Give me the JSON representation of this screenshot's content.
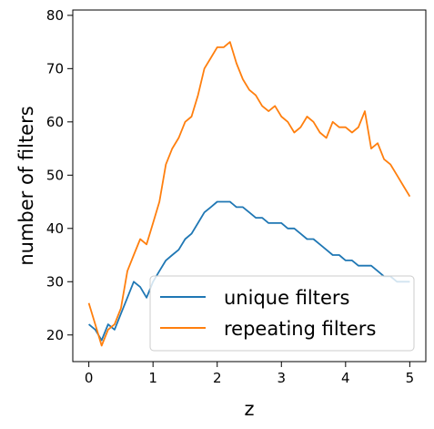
{
  "chart_data": {
    "type": "line",
    "xlabel": "z",
    "ylabel": "number of filters",
    "xlim": [
      -0.25,
      5.25
    ],
    "ylim": [
      15,
      81
    ],
    "xticks": [
      0,
      1,
      2,
      3,
      4,
      5
    ],
    "yticks": [
      20,
      30,
      40,
      50,
      60,
      70,
      80
    ],
    "grid": false,
    "legend_position": "lower-right",
    "x": [
      0.0,
      0.1,
      0.2,
      0.3,
      0.4,
      0.5,
      0.6,
      0.7,
      0.8,
      0.9,
      1.0,
      1.1,
      1.2,
      1.3,
      1.4,
      1.5,
      1.6,
      1.7,
      1.8,
      1.9,
      2.0,
      2.1,
      2.2,
      2.3,
      2.4,
      2.5,
      2.6,
      2.7,
      2.8,
      2.9,
      3.0,
      3.1,
      3.2,
      3.3,
      3.4,
      3.5,
      3.6,
      3.7,
      3.8,
      3.9,
      4.0,
      4.1,
      4.2,
      4.3,
      4.4,
      4.5,
      4.6,
      4.7,
      4.8,
      4.9,
      5.0
    ],
    "series": [
      {
        "name": "unique filters",
        "color": "#1f77b4",
        "values": [
          22,
          21,
          19,
          22,
          21,
          24,
          27,
          30,
          29,
          27,
          30,
          32,
          34,
          35,
          36,
          38,
          39,
          41,
          43,
          44,
          45,
          45,
          45,
          44,
          44,
          43,
          42,
          42,
          41,
          41,
          41,
          40,
          40,
          39,
          38,
          38,
          37,
          36,
          35,
          35,
          34,
          34,
          33,
          33,
          33,
          32,
          31,
          31,
          30,
          30,
          30
        ]
      },
      {
        "name": "repeating filters",
        "color": "#ff7f0e",
        "values": [
          26,
          22,
          18,
          21,
          22,
          25,
          32,
          35,
          38,
          37,
          41,
          45,
          52,
          55,
          57,
          60,
          61,
          65,
          70,
          72,
          74,
          74,
          75,
          71,
          68,
          66,
          65,
          63,
          62,
          63,
          61,
          60,
          58,
          59,
          61,
          60,
          58,
          57,
          60,
          59,
          59,
          58,
          59,
          62,
          55,
          56,
          53,
          52,
          50,
          48,
          46
        ]
      }
    ]
  }
}
